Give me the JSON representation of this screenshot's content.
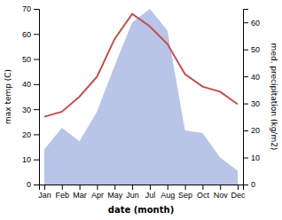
{
  "chart_data": {
    "type": "line",
    "categories": [
      "Jan",
      "Feb",
      "Mar",
      "Apr",
      "May",
      "Jun",
      "Jul",
      "Aug",
      "Sep",
      "Oct",
      "Nov",
      "Dec"
    ],
    "x_label": "date (month)",
    "y_label": "max temp (C)",
    "y2_label": "med. precipitation (kg/m2)",
    "series": [
      {
        "type": "area",
        "axis": "y2",
        "color": "#b8c4e8",
        "values": [
          13,
          21,
          16,
          27,
          44,
          60,
          65,
          57,
          20,
          19,
          10,
          5
        ]
      },
      {
        "type": "line",
        "color": "#c0504d",
        "values": [
          27,
          29,
          35,
          43,
          58,
          68,
          63,
          56,
          44,
          39,
          37,
          32
        ]
      }
    ],
    "ylim": [
      0,
      70
    ],
    "yticks": [
      0,
      10,
      20,
      30,
      40,
      50,
      60,
      70
    ],
    "y2lim": [
      0,
      65
    ],
    "y2ticks": [
      0,
      10,
      20,
      30,
      40,
      50,
      60
    ],
    "grid": false
  }
}
